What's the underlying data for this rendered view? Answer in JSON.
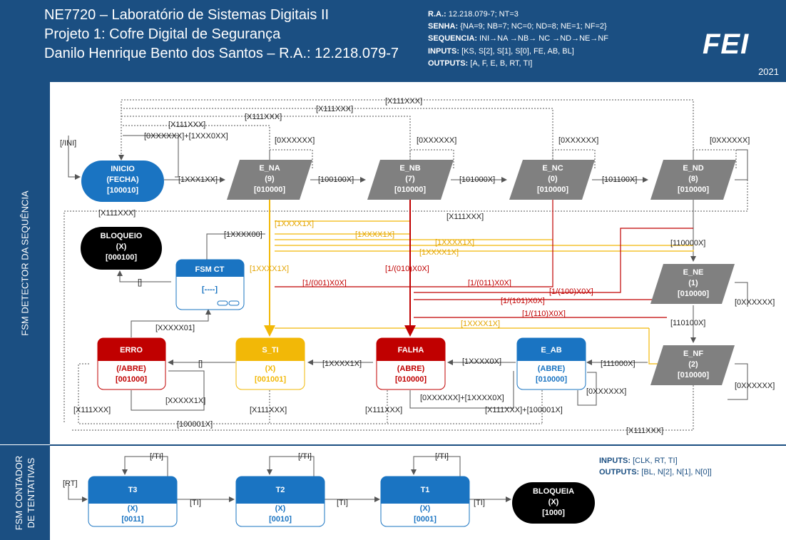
{
  "header": {
    "title1": "NE7720 – Laboratório de Sistemas Digitais II",
    "title2": "Projeto 1: Cofre Digital de Segurança",
    "title3": "Danilo Henrique Bento dos Santos – R.A.: 12.218.079-7",
    "ra_label": "R.A.:",
    "ra_value": "12.218.079-7; NT=3",
    "senha_label": "SENHA:",
    "senha_value": "{NA=9; NB=7; NC=0; ND=8; NE=1; NF=2}",
    "seq_label": "SEQUENCIA:",
    "seq_value": "INI→NA →NB→ NC →ND→NE→NF",
    "inputs_label": "INPUTS:",
    "inputs_value": "[KS, S[2], S[1], S[0], FE, AB, BL]",
    "outputs_label": "OUTPUTS:",
    "outputs_value": "[A, F, E, B, RT, TI]",
    "logo": "FEI",
    "year": "2021"
  },
  "sections": {
    "detector": "FSM DETECTOR DA SEQUÊNCIA",
    "counter_l1": "FSM CONTADOR",
    "counter_l2": "DE TENTATIVAS"
  },
  "states": {
    "inicio": [
      "INICIO",
      "(FECHA)",
      "[100010]"
    ],
    "e_na": [
      "E_NA",
      "(9)",
      "[010000]"
    ],
    "e_nb": [
      "E_NB",
      "(7)",
      "[010000]"
    ],
    "e_nc": [
      "E_NC",
      "(0)",
      "[010000]"
    ],
    "e_nd": [
      "E_ND",
      "(8)",
      "[010000]"
    ],
    "e_ne": [
      "E_NE",
      "(1)",
      "[010000]"
    ],
    "e_nf": [
      "E_NF",
      "(2)",
      "[010000]"
    ],
    "bloqueio": [
      "BLOQUEIO",
      "(X)",
      "[000100]"
    ],
    "fsm_ct": [
      "FSM CT",
      "[----]"
    ],
    "erro": [
      "ERRO",
      "(/ABRE)",
      "[001000]"
    ],
    "s_ti": [
      "S_TI",
      "(X)",
      "[001001]"
    ],
    "falha": [
      "FALHA",
      "(ABRE)",
      "[010000]"
    ],
    "e_ab": [
      "E_AB",
      "(ABRE)",
      "[010000]"
    ],
    "t3": [
      "T3",
      "(X)",
      "[0011]"
    ],
    "t2": [
      "T2",
      "(X)",
      "[0010]"
    ],
    "t1": [
      "T1",
      "(X)",
      "[0001]"
    ],
    "bloqueia": [
      "BLOQUEIA",
      "(X)",
      "[1000]"
    ]
  },
  "labels": {
    "ini": "[/INI]",
    "x111xxx": "[X111XXX]",
    "oxxxxxx": "[0XXXXXX]",
    "reset_or": "[0XXXXXX]+[1XXX0XX]",
    "t_1xxx1xx": "[1XXX1XX]",
    "t_100100x": "[100100X]",
    "t_101000x": "[101000X]",
    "t_101100x": "[101100X]",
    "t_110000x": "[110000X]",
    "t_110100x": "[110100X]",
    "t_111000x": "[111000X]",
    "t_1xxxx00": "[1XXXX00]",
    "t_1xxxx1x": "[1XXXX1X]",
    "t_1xxxx0x": "[1XXXX0X]",
    "t_xxxxx01": "[XXXXX01]",
    "t_xxxxx1x": "[XXXXX1X]",
    "t_100001x": "[100001X]",
    "falha_or": "[0XXXXXX]+[1XXXX0X]",
    "eab_or": "[X111XXX]+[100001X]",
    "empty": "[]",
    "r_010": "[1/(010)X0X]",
    "r_001": "[1/(001)X0X]",
    "r_011": "[1/(011)X0X]",
    "r_100": "[1/(100)X0X]",
    "r_101": "[1/(101)X0X]",
    "r_110": "[1/(110)X0X]",
    "ti": "[TI]",
    "not_ti": "[/TI]",
    "rt": "[RT]"
  },
  "counter_legend": {
    "inputs_label": "INPUTS:",
    "inputs_value": "[CLK, RT, TI]",
    "outputs_label": "OUTPUTS:",
    "outputs_value": "[BL, N[2], N[1], N[0]]"
  },
  "colors": {
    "header": "#1b4f82",
    "state_blue": "#1a74c2",
    "gray": "#808080",
    "black": "#000000",
    "red": "#c00000",
    "orange": "#f2b807",
    "line": "#555555"
  }
}
